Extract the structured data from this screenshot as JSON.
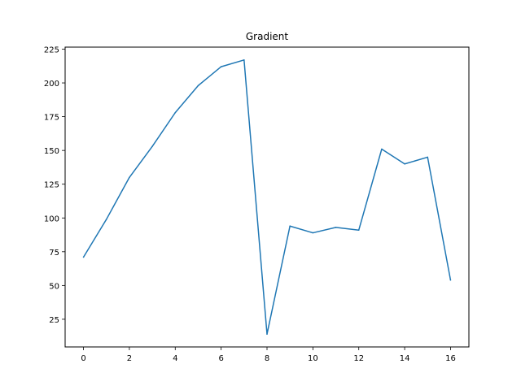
{
  "chart_data": {
    "type": "line",
    "title": "Gradient",
    "xlabel": "",
    "ylabel": "",
    "x": [
      0,
      1,
      2,
      3,
      4,
      5,
      6,
      7,
      8,
      9,
      10,
      11,
      12,
      13,
      14,
      15,
      16
    ],
    "series": [
      {
        "values": [
          71,
          99,
          130,
          153,
          178,
          198,
          212,
          217,
          14,
          94,
          89,
          93,
          91,
          151,
          140,
          145,
          54
        ],
        "color": "#1f77b4"
      }
    ],
    "xlim": [
      -0.8,
      16.8
    ],
    "ylim": [
      4.5,
      226.5
    ],
    "xticks": [
      0,
      2,
      4,
      6,
      8,
      10,
      12,
      14,
      16
    ],
    "yticks": [
      25,
      50,
      75,
      100,
      125,
      150,
      175,
      200,
      225
    ],
    "grid": false,
    "legend": "none"
  }
}
